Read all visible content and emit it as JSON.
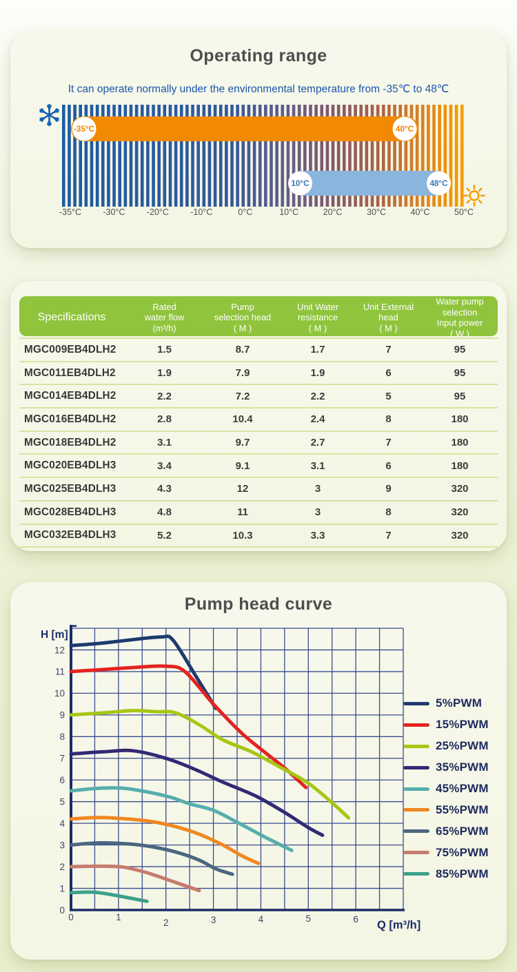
{
  "operating_range": {
    "title": "Operating range",
    "subtitle": "It can operate normally under the environmental temperature from -35℃ to 48℃",
    "axis_labels": [
      "-35°C",
      "-30°C",
      "-20°C",
      "-10°C",
      "0°C",
      "10°C",
      "20°C",
      "30°C",
      "40°C",
      "50°C"
    ],
    "bar_gradient": [
      {
        "pos": 0,
        "color": "#1d5ca5"
      },
      {
        "pos": 0.42,
        "color": "#33599b"
      },
      {
        "pos": 0.56,
        "color": "#655d8b"
      },
      {
        "pos": 0.68,
        "color": "#84596a"
      },
      {
        "pos": 0.79,
        "color": "#a8634a"
      },
      {
        "pos": 0.88,
        "color": "#d77d25"
      },
      {
        "pos": 1,
        "color": "#f59d00"
      }
    ],
    "bands": [
      {
        "name": "air-temperature-range",
        "color": "#f18a00",
        "start_label": "-35°C",
        "end_label": "40°C",
        "label_color": "#f08300"
      },
      {
        "name": "water-temperature-range",
        "color": "#8ab6dd",
        "start_label": "10°C",
        "end_label": "48°C",
        "label_color": "#3a76b5"
      }
    ],
    "snowflake_color": "#1464b0",
    "sun_color": "#f59d00",
    "axis_label_color": "#4e4e4e"
  },
  "spec_table": {
    "header_bg": "#8fc43c",
    "headers": [
      "Specifications",
      "Rated\nwater flow\n(m³/h)",
      "Pump\nselection head\n( M )",
      "Unit Water\nresistance\n( M )",
      "Unit External\nhead\n( M )",
      "Water pump\nselection\nInput power\n( W )"
    ],
    "rows": [
      [
        "MGC009EB4DLH2",
        "1.5",
        "8.7",
        "1.7",
        "7",
        "95"
      ],
      [
        "MGC011EB4DLH2",
        "1.9",
        "7.9",
        "1.9",
        "6",
        "95"
      ],
      [
        "MGC014EB4DLH2",
        "2.2",
        "7.2",
        "2.2",
        "5",
        "95"
      ],
      [
        "MGC016EB4DLH2",
        "2.8",
        "10.4",
        "2.4",
        "8",
        "180"
      ],
      [
        "MGC018EB4DLH2",
        "3.1",
        "9.7",
        "2.7",
        "7",
        "180"
      ],
      [
        "MGC020EB4DLH3",
        "3.4",
        "9.1",
        "3.1",
        "6",
        "180"
      ],
      [
        "MGC025EB4DLH3",
        "4.3",
        "12",
        "3",
        "9",
        "320"
      ],
      [
        "MGC028EB4DLH3",
        "4.8",
        "11",
        "3",
        "8",
        "320"
      ],
      [
        "MGC032EB4DLH3",
        "5.2",
        "10.3",
        "3.3",
        "7",
        "320"
      ]
    ]
  },
  "chart_data": {
    "type": "line",
    "title": "Pump head curve",
    "xlabel": "Q [m³/h]",
    "ylabel": "H [m]",
    "xlim": [
      0,
      7
    ],
    "ylim": [
      0,
      13
    ],
    "x_ticks": [
      0,
      1,
      2,
      3,
      4,
      5,
      6
    ],
    "y_ticks": [
      0,
      1,
      2,
      3,
      4,
      5,
      6,
      7,
      8,
      9,
      10,
      11,
      12
    ],
    "grid": "on (x every 0.5, y every 1)",
    "legend_position": "right",
    "grid_color": "#3a4b8e",
    "axis_color": "#1b2c66",
    "tick_label_color": "#3e4366",
    "series": [
      {
        "name": "5%PWM",
        "color": "#1e3a6e",
        "points": [
          [
            0,
            12.2
          ],
          [
            0.6,
            12.3
          ],
          [
            1.2,
            12.45
          ],
          [
            1.9,
            12.6
          ],
          [
            2.15,
            12.45
          ],
          [
            2.6,
            10.9
          ],
          [
            3.05,
            9.3
          ]
        ]
      },
      {
        "name": "15%PWM",
        "color": "#e42320",
        "points": [
          [
            0,
            11.0
          ],
          [
            0.7,
            11.1
          ],
          [
            1.4,
            11.2
          ],
          [
            2.0,
            11.25
          ],
          [
            2.4,
            11.0
          ],
          [
            3.0,
            9.5
          ],
          [
            3.6,
            8.15
          ],
          [
            4.1,
            7.25
          ],
          [
            4.5,
            6.55
          ],
          [
            4.95,
            5.65
          ]
        ]
      },
      {
        "name": "25%PWM",
        "color": "#a7c614",
        "points": [
          [
            0,
            9.0
          ],
          [
            0.7,
            9.1
          ],
          [
            1.3,
            9.2
          ],
          [
            1.8,
            9.15
          ],
          [
            2.2,
            9.1
          ],
          [
            2.7,
            8.55
          ],
          [
            3.2,
            7.85
          ],
          [
            3.8,
            7.3
          ],
          [
            4.4,
            6.6
          ],
          [
            5.0,
            5.85
          ],
          [
            5.5,
            4.95
          ],
          [
            5.85,
            4.25
          ]
        ]
      },
      {
        "name": "35%PWM",
        "color": "#322a75",
        "points": [
          [
            0,
            7.2
          ],
          [
            0.7,
            7.3
          ],
          [
            1.3,
            7.35
          ],
          [
            2.0,
            7.0
          ],
          [
            2.6,
            6.5
          ],
          [
            3.2,
            5.9
          ],
          [
            3.9,
            5.25
          ],
          [
            4.5,
            4.5
          ],
          [
            5.0,
            3.8
          ],
          [
            5.3,
            3.45
          ]
        ]
      },
      {
        "name": "45%PWM",
        "color": "#55aeac",
        "points": [
          [
            0,
            5.5
          ],
          [
            0.6,
            5.62
          ],
          [
            1.1,
            5.62
          ],
          [
            1.6,
            5.45
          ],
          [
            2.1,
            5.2
          ],
          [
            2.5,
            4.9
          ],
          [
            3.0,
            4.6
          ],
          [
            3.5,
            4.05
          ],
          [
            4.1,
            3.35
          ],
          [
            4.65,
            2.75
          ]
        ]
      },
      {
        "name": "55%PWM",
        "color": "#ef8820",
        "points": [
          [
            0,
            4.2
          ],
          [
            0.6,
            4.27
          ],
          [
            1.2,
            4.2
          ],
          [
            1.7,
            4.08
          ],
          [
            2.2,
            3.85
          ],
          [
            2.7,
            3.5
          ],
          [
            3.2,
            3.0
          ],
          [
            3.6,
            2.5
          ],
          [
            3.95,
            2.15
          ]
        ]
      },
      {
        "name": "65%PWM",
        "color": "#4b6680",
        "points": [
          [
            0,
            3.0
          ],
          [
            0.6,
            3.1
          ],
          [
            1.2,
            3.05
          ],
          [
            1.7,
            2.92
          ],
          [
            2.2,
            2.68
          ],
          [
            2.7,
            2.3
          ],
          [
            3.05,
            1.9
          ],
          [
            3.4,
            1.65
          ]
        ]
      },
      {
        "name": "75%PWM",
        "color": "#c67c6e",
        "points": [
          [
            0,
            2.0
          ],
          [
            0.6,
            2.02
          ],
          [
            1.1,
            1.98
          ],
          [
            1.6,
            1.72
          ],
          [
            2.1,
            1.35
          ],
          [
            2.7,
            0.9
          ]
        ]
      },
      {
        "name": "85%PWM",
        "color": "#3ba18a",
        "points": [
          [
            0,
            0.8
          ],
          [
            0.5,
            0.82
          ],
          [
            1.0,
            0.65
          ],
          [
            1.6,
            0.4
          ]
        ]
      }
    ]
  }
}
